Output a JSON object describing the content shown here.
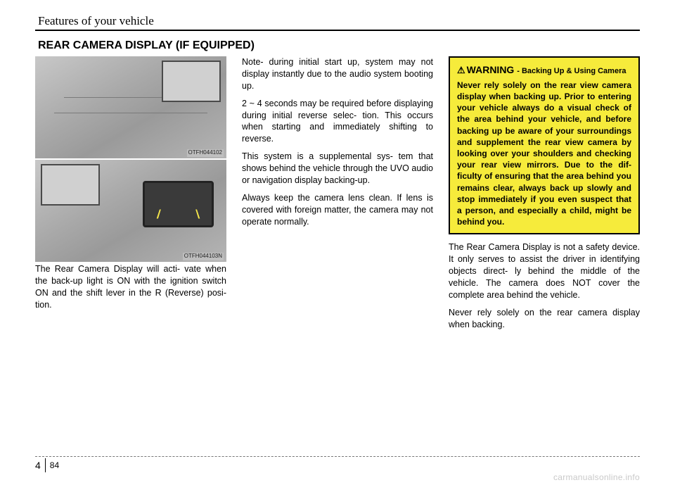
{
  "chapter_title": "Features of your vehicle",
  "section_heading": "REAR CAMERA DISPLAY (IF EQUIPPED)",
  "figures": {
    "top_code": "OTFH044102",
    "bottom_code": "OTFH044103N"
  },
  "col1": {
    "p1": "The Rear Camera Display will acti- vate when the back-up light is ON with the ignition switch ON and the shift lever in the R (Reverse) posi- tion."
  },
  "col2": {
    "p1": "Note- during initial start up, system may not display instantly due to the audio system booting up.",
    "p2": "2 ~ 4 seconds may be required before displaying during initial reverse selec- tion. This occurs when starting and immediately shifting to reverse.",
    "p3": "This system is a supplemental sys- tem that shows behind the vehicle through the UVO audio or navigation display backing-up.",
    "p4": "Always keep the camera lens clean. If lens is covered with foreign matter, the camera may not operate normally."
  },
  "col3": {
    "warning_title": "WARNING",
    "warning_subtitle": "- Backing Up & Using Camera",
    "warning_body": "Never rely solely on the rear view camera display when backing up. Prior to entering your vehicle always do a visual check of the area behind your vehicle, and before backing up be aware of your surroundings and supplement the rear view camera by looking over your shoulders and checking your rear view mirrors. Due to the dif- ficulty of ensuring that the area behind you remains clear, always back up slowly and stop immediately if you even suspect that a person, and especially a child, might be behind you.",
    "p1": "The Rear Camera Display is not a safety device. It only serves to assist the driver in identifying objects direct- ly behind the middle of the vehicle. The camera does NOT cover the complete area behind the vehicle.",
    "p2": "Never rely solely on the rear camera display when backing."
  },
  "footer": {
    "section_number": "4",
    "page_number": "84"
  },
  "watermark": "carmanualsonline.info",
  "colors": {
    "warning_bg": "#f6eb3b",
    "text": "#000000",
    "watermark_color": "#c9c9c9"
  }
}
